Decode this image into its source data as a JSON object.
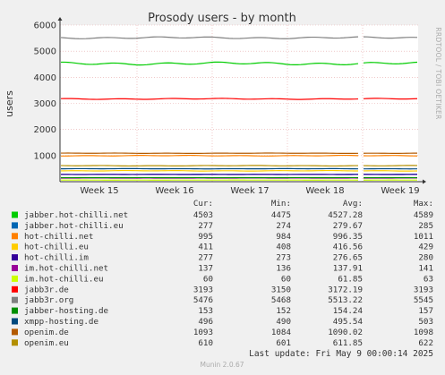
{
  "chart_data": {
    "type": "line",
    "title": "Prosody users - by month",
    "ylabel": "users",
    "ylim": [
      0,
      6000
    ],
    "yticks": [
      1000,
      2000,
      3000,
      4000,
      5000,
      6000
    ],
    "xticks": [
      "Week 15",
      "Week 16",
      "Week 17",
      "Week 18",
      "Week 19"
    ],
    "grid": true,
    "side_label": "RRDTOOL / TOBI OETIKER",
    "legend_headers": [
      "Cur:",
      "Min:",
      "Avg:",
      "Max:"
    ],
    "series": [
      {
        "name": "jabber.hot-chilli.net",
        "color": "#00cc00",
        "cur": "4503",
        "min": "4475",
        "avg": "4527.28",
        "max": "4589"
      },
      {
        "name": "jabber.hot-chilli.eu",
        "color": "#0066b3",
        "cur": "277",
        "min": "274",
        "avg": "279.67",
        "max": "285"
      },
      {
        "name": "hot-chilli.net",
        "color": "#ff8000",
        "cur": "995",
        "min": "984",
        "avg": "996.35",
        "max": "1011"
      },
      {
        "name": "hot-chilli.eu",
        "color": "#ffcc00",
        "cur": "411",
        "min": "408",
        "avg": "416.56",
        "max": "429"
      },
      {
        "name": "hot-chilli.im",
        "color": "#330099",
        "cur": "277",
        "min": "273",
        "avg": "276.65",
        "max": "280"
      },
      {
        "name": "im.hot-chilli.net",
        "color": "#990099",
        "cur": "137",
        "min": "136",
        "avg": "137.91",
        "max": "141"
      },
      {
        "name": "im.hot-chilli.eu",
        "color": "#ccff00",
        "cur": "60",
        "min": "60",
        "avg": "61.85",
        "max": "63"
      },
      {
        "name": "jabb3r.de",
        "color": "#ff0000",
        "cur": "3193",
        "min": "3150",
        "avg": "3172.19",
        "max": "3193"
      },
      {
        "name": "jabb3r.org",
        "color": "#808080",
        "cur": "5476",
        "min": "5468",
        "avg": "5513.22",
        "max": "5545"
      },
      {
        "name": "jabber-hosting.de",
        "color": "#008f00",
        "cur": "153",
        "min": "152",
        "avg": "154.24",
        "max": "157"
      },
      {
        "name": "xmpp-hosting.de",
        "color": "#00487d",
        "cur": "496",
        "min": "490",
        "avg": "495.54",
        "max": "503"
      },
      {
        "name": "openim.de",
        "color": "#b35a00",
        "cur": "1093",
        "min": "1084",
        "avg": "1090.02",
        "max": "1098"
      },
      {
        "name": "openim.eu",
        "color": "#b38f00",
        "cur": "610",
        "min": "601",
        "avg": "611.85",
        "max": "622"
      }
    ],
    "last_update": "Last update: Fri May  9 00:00:14 2025",
    "footer": "Munin 2.0.67"
  }
}
